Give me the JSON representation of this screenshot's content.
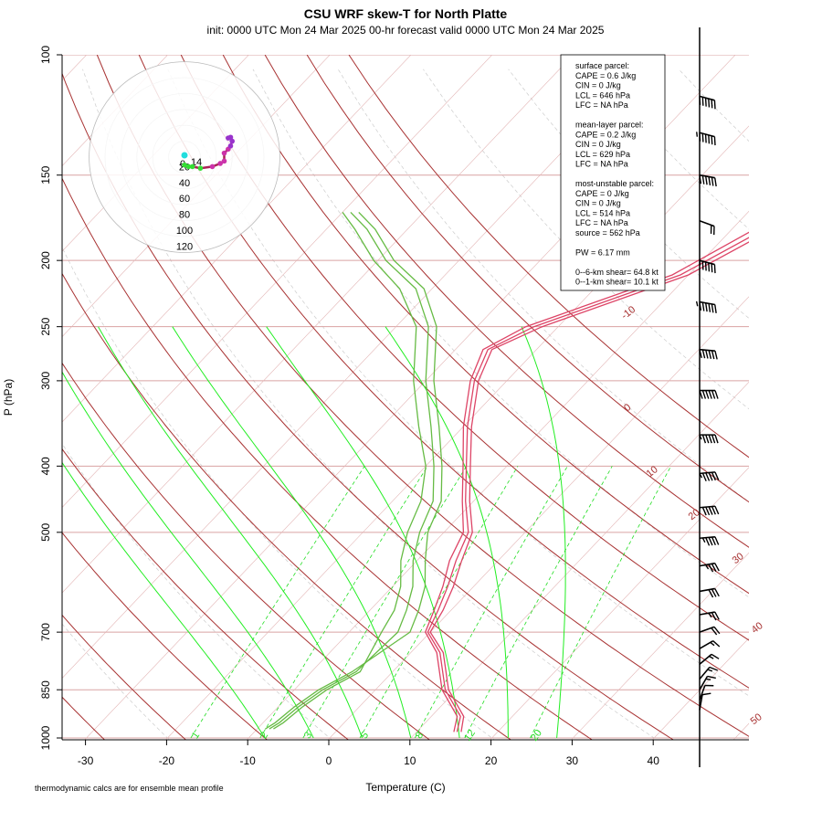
{
  "title": "CSU WRF skew-T for North Platte",
  "subtitle": "init: 0000 UTC Mon 24 Mar 2025     00-hr forecast valid 0000 UTC Mon 24 Mar 2025",
  "footnote": "thermodynamic calcs are for ensemble mean profile",
  "colors": {
    "isotherm": "#a83232",
    "isobar": "#d9a3a3",
    "mixing_ratio": "#22dd22",
    "moist_adiabat": "#22ee22",
    "temperature": "#dd4466",
    "dewpoint": "#66bb44",
    "hodograph_ring": "#bbbbbb"
  },
  "legend": {
    "lines": [
      "surface parcel:",
      "CAPE = 0.6 J/kg",
      "CIN = 0 J/kg",
      "LCL = 646 hPa",
      "LFC = NA hPa",
      "",
      "mean-layer parcel:",
      "CAPE = 0.2 J/kg",
      "CIN = 0 J/kg",
      "LCL = 629 hPa",
      "LFC = NA hPa",
      "",
      "most-unstable parcel:",
      "CAPE = 0 J/kg",
      "CIN = 0 J/kg",
      "LCL = 514 hPa",
      "LFC = NA hPa",
      "source = 562 hPa",
      "",
      "PW =  6.17 mm",
      "",
      "0--6-km shear= 64.8 kt",
      "0--1-km shear= 10.1 kt"
    ]
  },
  "chart_data": {
    "type": "line",
    "xlabel": "Temperature (C)",
    "ylabel": "P (hPa)",
    "xlim": [
      -33,
      45
    ],
    "ylim": [
      1000,
      100
    ],
    "y_scale": "log",
    "x_ticks": [
      -30,
      -20,
      -10,
      0,
      10,
      20,
      30,
      40
    ],
    "y_ticks": [
      100,
      150,
      200,
      250,
      300,
      400,
      500,
      700,
      850,
      1000
    ],
    "isotherm_labels": [
      {
        "value": -10,
        "label": "-10"
      },
      {
        "value": 0,
        "label": "0"
      },
      {
        "value": 10,
        "label": "10"
      },
      {
        "value": 20,
        "label": "20"
      },
      {
        "value": 30,
        "label": "30"
      },
      {
        "value": 40,
        "label": "40"
      },
      {
        "value": 50,
        "label": "50"
      }
    ],
    "mixing_ratio_labels": [
      "1",
      "2",
      "3",
      "5",
      "8",
      "12",
      "20"
    ],
    "series": [
      {
        "kind": "temperature",
        "members": [
          {
            "p": [
              980,
              930,
              850,
              750,
              700,
              650,
              600,
              550,
              500,
              450,
              400,
              350,
              300,
              270,
              250,
              210,
              180,
              150,
              130,
              118
            ],
            "t": [
              15.5,
              14,
              9,
              4,
              0,
              -1,
              -2.5,
              -4.5,
              -6.5,
              -10.5,
              -14.5,
              -19,
              -23.5,
              -25.5,
              -22,
              -10,
              -5,
              -3,
              -2,
              0
            ]
          },
          {
            "p": [
              980,
              930,
              850,
              750,
              700,
              650,
              600,
              550,
              500,
              450,
              400,
              350,
              300,
              270,
              250,
              210,
              180,
              150,
              130,
              118
            ],
            "t": [
              15,
              13.6,
              8.6,
              3.6,
              -0.3,
              -1.6,
              -3.2,
              -5.2,
              -7,
              -11,
              -15,
              -19.5,
              -24,
              -26,
              -23,
              -11,
              -6,
              -4.5,
              -3,
              -1
            ]
          },
          {
            "p": [
              980,
              930,
              850,
              750,
              700,
              650,
              600,
              550,
              500,
              450,
              400,
              350,
              300,
              270,
              250,
              210,
              180,
              150,
              130,
              118
            ],
            "t": [
              14.6,
              13.2,
              8.2,
              3.2,
              -0.6,
              -2.1,
              -3.8,
              -6,
              -7.6,
              -11.4,
              -15.4,
              -20,
              -24.5,
              -26.6,
              -24,
              -12,
              -7.2,
              -5.5,
              -4,
              -1.6
            ]
          }
        ]
      },
      {
        "kind": "dewpoint",
        "members": [
          {
            "p": [
              970,
              950,
              900,
              850,
              800,
              700,
              650,
              600,
              550,
              500,
              450,
              400,
              350,
              300,
              250,
              220,
              200,
              180,
              170
            ],
            "t": [
              -9,
              -8.5,
              -8,
              -7,
              -5,
              -2.5,
              -4,
              -6,
              -9,
              -12,
              -14,
              -18,
              -23,
              -29,
              -35,
              -41,
              -48,
              -54,
              -58
            ]
          },
          {
            "p": [
              970,
              950,
              900,
              850,
              800,
              700,
              650,
              600,
              550,
              500,
              450,
              400,
              350,
              300,
              250,
              220,
              200,
              180,
              170
            ],
            "t": [
              -8.5,
              -8,
              -7.5,
              -6.5,
              -4.5,
              -4,
              -5.5,
              -7.5,
              -10.5,
              -13,
              -15,
              -19,
              -24,
              -30,
              -36,
              -42,
              -49,
              -55,
              -59
            ]
          },
          {
            "p": [
              970,
              950,
              900,
              850,
              800,
              700,
              650,
              600,
              550,
              500,
              450,
              400,
              350,
              300,
              250,
              220,
              200,
              180,
              170
            ],
            "t": [
              -8,
              -7.5,
              -7,
              -6,
              -4,
              -6,
              -7,
              -9,
              -12,
              -14.5,
              -16.5,
              -20,
              -25.5,
              -31.5,
              -37.5,
              -44,
              -50.5,
              -56.5,
              -60
            ]
          }
        ]
      }
    ],
    "hodograph": {
      "ring_labels": [
        "20",
        "40",
        "60",
        "80",
        "100",
        "120"
      ],
      "ring_values_kt": [
        20,
        40,
        60,
        80,
        100,
        120
      ],
      "extra_labels": [
        "0",
        "14"
      ],
      "trace_uv_kt": [
        [
          0,
          10
        ],
        [
          5,
          12
        ],
        [
          10,
          12
        ],
        [
          20,
          14
        ],
        [
          35,
          12
        ],
        [
          45,
          8
        ],
        [
          50,
          5
        ],
        [
          50,
          -5
        ],
        [
          55,
          -10
        ],
        [
          58,
          -14
        ],
        [
          60,
          -20
        ],
        [
          58,
          -25
        ],
        [
          55,
          -24
        ]
      ]
    },
    "wind_barbs": [
      {
        "p": 115,
        "speed_kt": 60,
        "dir_deg": 285
      },
      {
        "p": 130,
        "speed_kt": 65,
        "dir_deg": 285
      },
      {
        "p": 150,
        "speed_kt": 60,
        "dir_deg": 280
      },
      {
        "p": 175,
        "speed_kt": 20,
        "dir_deg": 290
      },
      {
        "p": 200,
        "speed_kt": 55,
        "dir_deg": 285
      },
      {
        "p": 230,
        "speed_kt": 65,
        "dir_deg": 280
      },
      {
        "p": 270,
        "speed_kt": 60,
        "dir_deg": 275
      },
      {
        "p": 310,
        "speed_kt": 60,
        "dir_deg": 270
      },
      {
        "p": 360,
        "speed_kt": 55,
        "dir_deg": 270
      },
      {
        "p": 410,
        "speed_kt": 55,
        "dir_deg": 265
      },
      {
        "p": 460,
        "speed_kt": 50,
        "dir_deg": 265
      },
      {
        "p": 510,
        "speed_kt": 45,
        "dir_deg": 265
      },
      {
        "p": 560,
        "speed_kt": 35,
        "dir_deg": 260
      },
      {
        "p": 610,
        "speed_kt": 30,
        "dir_deg": 260
      },
      {
        "p": 660,
        "speed_kt": 25,
        "dir_deg": 260
      },
      {
        "p": 700,
        "speed_kt": 20,
        "dir_deg": 250
      },
      {
        "p": 740,
        "speed_kt": 15,
        "dir_deg": 240
      },
      {
        "p": 780,
        "speed_kt": 15,
        "dir_deg": 230
      },
      {
        "p": 820,
        "speed_kt": 15,
        "dir_deg": 220
      },
      {
        "p": 850,
        "speed_kt": 15,
        "dir_deg": 210
      },
      {
        "p": 880,
        "speed_kt": 10,
        "dir_deg": 200
      },
      {
        "p": 910,
        "speed_kt": 10,
        "dir_deg": 190
      }
    ]
  }
}
